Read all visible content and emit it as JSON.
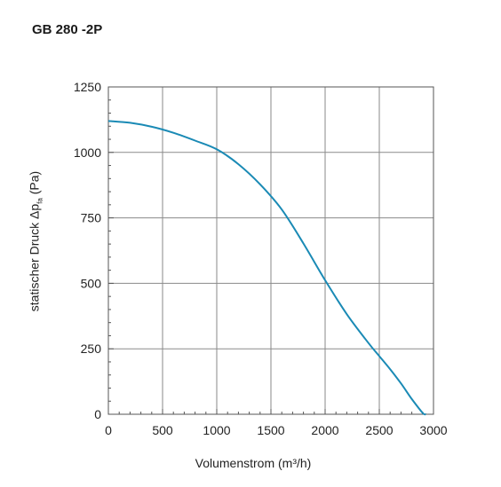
{
  "chart_data": {
    "type": "line",
    "title": "GB 280 -2P",
    "xlabel": "Volumenstrom (m³/h)",
    "ylabel": {
      "main": "statischer Druck Δp",
      "sub": "fa",
      "unit": " (Pa)"
    },
    "xlim": [
      0,
      3000
    ],
    "ylim": [
      0,
      1250
    ],
    "x_ticks": [
      0,
      500,
      1000,
      1500,
      2000,
      2500,
      3000
    ],
    "y_ticks": [
      0,
      250,
      500,
      750,
      1000,
      1250
    ],
    "x_tick_labels": [
      "0",
      "500",
      "1000",
      "1500",
      "2000",
      "2500",
      "3000"
    ],
    "y_tick_labels": [
      "0",
      "250",
      "500",
      "750",
      "1000",
      "1250"
    ],
    "grid": true,
    "series": [
      {
        "color": "#1a8ab5",
        "x": [
          0,
          200,
          400,
          600,
          800,
          1000,
          1200,
          1400,
          1600,
          1800,
          2000,
          2200,
          2400,
          2500,
          2600,
          2700,
          2800,
          2900,
          2930
        ],
        "y": [
          1120,
          1113,
          1098,
          1075,
          1045,
          1012,
          955,
          878,
          782,
          652,
          512,
          382,
          272,
          222,
          172,
          118,
          58,
          5,
          0
        ]
      }
    ]
  }
}
